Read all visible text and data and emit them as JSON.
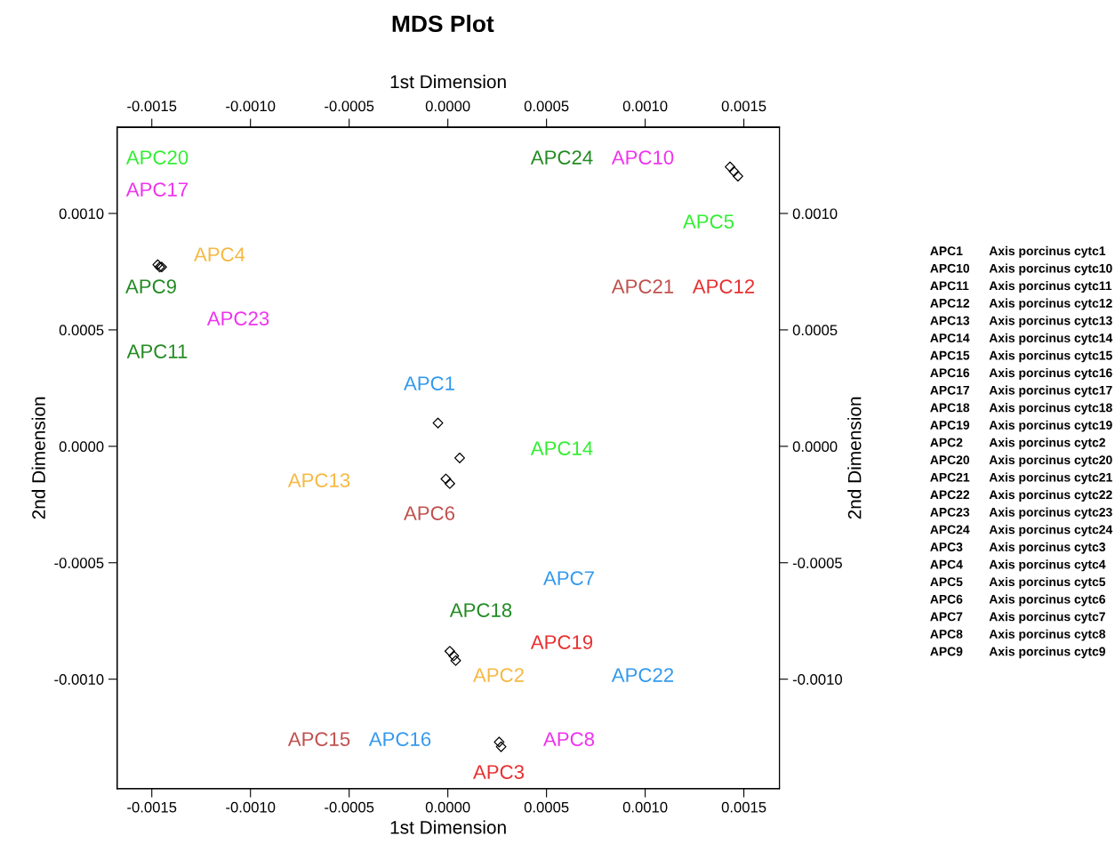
{
  "chart_data": {
    "type": "scatter",
    "title": "MDS Plot",
    "xlabel": "1st Dimension",
    "x2label": "1st Dimension",
    "ylabel": "2nd Dimension",
    "y2label": "2nd Dimension",
    "xlim": [
      -0.001676,
      0.00168
    ],
    "x2lim": [
      -0.001676,
      0.00168
    ],
    "ylim": [
      -0.00147,
      0.00137
    ],
    "y2lim": [
      -0.00147,
      0.00137
    ],
    "xticks": [
      {
        "value": -0.0015,
        "label": "-0.0015"
      },
      {
        "value": -0.001,
        "label": "-0.0010"
      },
      {
        "value": -0.0005,
        "label": "-0.0005"
      },
      {
        "value": 0,
        "label": "0.0000"
      },
      {
        "value": 0.0005,
        "label": "0.0005"
      },
      {
        "value": 0.001,
        "label": "0.0010"
      },
      {
        "value": 0.0015,
        "label": "0.0015"
      }
    ],
    "x2ticks": [
      {
        "value": -0.0015,
        "label": "-0.0015"
      },
      {
        "value": -0.001,
        "label": "-0.0010"
      },
      {
        "value": -0.0005,
        "label": "-0.0005"
      },
      {
        "value": 0,
        "label": "0.0000"
      },
      {
        "value": 0.0005,
        "label": "0.0005"
      },
      {
        "value": 0.001,
        "label": "0.0010"
      },
      {
        "value": 0.0015,
        "label": "0.0015"
      }
    ],
    "yticks": [
      {
        "value": -0.001,
        "label": "-0.0010"
      },
      {
        "value": -0.0005,
        "label": "-0.0005"
      },
      {
        "value": 0,
        "label": "0.0000"
      },
      {
        "value": 0.0005,
        "label": "0.0005"
      },
      {
        "value": 0.001,
        "label": "0.0010"
      }
    ],
    "y2ticks": [
      {
        "value": -0.001,
        "label": "-0.0010"
      },
      {
        "value": -0.0005,
        "label": "-0.0005"
      },
      {
        "value": 0,
        "label": "0.0000"
      },
      {
        "value": 0.0005,
        "label": "0.0005"
      },
      {
        "value": 0.001,
        "label": "0.0010"
      }
    ],
    "marker": "diamond",
    "grid": false,
    "legend": false,
    "series": [
      {
        "color": "#000000",
        "x": [
          0.00143,
          0.00145,
          0.00147,
          -0.00147,
          -0.00146,
          -0.00145,
          -5e-05,
          6e-05,
          -1e-05,
          1e-05,
          1e-05,
          3e-05,
          4e-05,
          0.00026,
          0.00027
        ],
        "values": [
          0.0012,
          0.00118,
          0.00116,
          0.00078,
          0.00077,
          0.00077,
          0.0001,
          -5e-05,
          -0.00014,
          -0.00016,
          -0.00088,
          -0.0009,
          -0.00092,
          -0.00127,
          -0.00129
        ]
      }
    ],
    "annotations": [
      "APC20",
      "APC17",
      "APC24",
      "APC10",
      "APC5",
      "APC4",
      "APC9",
      "APC21",
      "APC12",
      "APC23",
      "APC11",
      "APC1",
      "APC14",
      "APC13",
      "APC6",
      "APC7",
      "APC18",
      "APC19",
      "APC2",
      "APC22",
      "APC15",
      "APC16",
      "APC8",
      "APC3",
      "APC1 Axis porcinus cytc1",
      "APC10 Axis porcinus cytc10",
      "APC11 Axis porcinus cytc11",
      "APC12 Axis porcinus cytc12",
      "APC13 Axis porcinus cytc13",
      "APC14 Axis porcinus cytc14",
      "APC15 Axis porcinus cytc15",
      "APC16 Axis porcinus cytc16",
      "APC17 Axis porcinus cytc17",
      "APC18 Axis porcinus cytc18",
      "APC19 Axis porcinus cytc19",
      "APC2 Axis porcinus cytc2",
      "APC20 Axis porcinus cytc20",
      "APC21 Axis porcinus cytc21",
      "APC22 Axis porcinus cytc22",
      "APC23 Axis porcinus cytc23",
      "APC24 Axis porcinus cytc24",
      "APC3 Axis porcinus cytc3",
      "APC4 Axis porcinus cytc4",
      "APC5 Axis porcinus cytc5",
      "APC6 Axis porcinus cytc6",
      "APC7 Axis porcinus cytc7",
      "APC8 Axis porcinus cytc8",
      "APC9 Axis porcinus cytc9"
    ]
  }
}
